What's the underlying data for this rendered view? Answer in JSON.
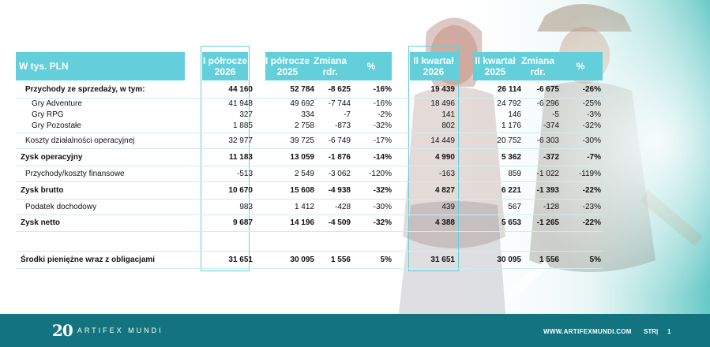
{
  "header": {
    "label": "W tys. PLN",
    "h1_2026": "I półrocze 2026",
    "h1_2025": "I półrocze 2025",
    "h1_change": "Zmiana rdr.",
    "h1_pct": "%",
    "q2_2026": "II kwartał 2026",
    "q2_2025": "II kwartał 2025",
    "q2_change": "Zmiana rdr.",
    "q2_pct": "%"
  },
  "rows": [
    {
      "label": "Przychody ze sprzedaży, w tym:",
      "h26": "44 160",
      "h25": "52 784",
      "hch": "-8 625",
      "hp": "-16%",
      "q26": "19 439",
      "q25": "26 114",
      "qch": "-6 675",
      "qp": "-26%"
    },
    {
      "label": "Gry Adventure",
      "h26": "41 948",
      "h25": "49 692",
      "hch": "-7 744",
      "hp": "-16%",
      "q26": "18 496",
      "q25": "24 792",
      "qch": "-6 296",
      "qp": "-25%"
    },
    {
      "label": "Gry RPG",
      "h26": "327",
      "h25": "334",
      "hch": "-7",
      "hp": "-2%",
      "q26": "141",
      "q25": "146",
      "qch": "-5",
      "qp": "-3%"
    },
    {
      "label": "Gry Pozostałe",
      "h26": "1 885",
      "h25": "2 758",
      "hch": "-873",
      "hp": "-32%",
      "q26": "802",
      "q25": "1 176",
      "qch": "-374",
      "qp": "-32%"
    },
    {
      "label": "Koszty działalności operacyjnej",
      "h26": "32 977",
      "h25": "39 725",
      "hch": "-6 749",
      "hp": "-17%",
      "q26": "14 449",
      "q25": "20 752",
      "qch": "-6 303",
      "qp": "-30%"
    },
    {
      "label": "Zysk operacyjny",
      "h26": "11 183",
      "h25": "13 059",
      "hch": "-1 876",
      "hp": "-14%",
      "q26": "4 990",
      "q25": "5 362",
      "qch": "-372",
      "qp": "-7%"
    },
    {
      "label": "Przychody/koszty finansowe",
      "h26": "-513",
      "h25": "2 549",
      "hch": "-3 062",
      "hp": "-120%",
      "q26": "-163",
      "q25": "859",
      "qch": "-1 022",
      "qp": "-119%"
    },
    {
      "label": "Zysk brutto",
      "h26": "10 670",
      "h25": "15 608",
      "hch": "-4 938",
      "hp": "-32%",
      "q26": "4 827",
      "q25": "6 221",
      "qch": "-1 393",
      "qp": "-22%"
    },
    {
      "label": "Podatek dochodowy",
      "h26": "983",
      "h25": "1 412",
      "hch": "-428",
      "hp": "-30%",
      "q26": "439",
      "q25": "567",
      "qch": "-128",
      "qp": "-23%"
    },
    {
      "label": "Zysk netto",
      "h26": "9 687",
      "h25": "14 196",
      "hch": "-4 509",
      "hp": "-32%",
      "q26": "4 388",
      "q25": "5 653",
      "qch": "-1 265",
      "qp": "-22%"
    },
    {
      "label": "Środki pieniężne wraz z obligacjami",
      "h26": "31 651",
      "h25": "30 095",
      "hch": "1 556",
      "hp": "5%",
      "q26": "31 651",
      "q25": "30 095",
      "qch": "1 556",
      "qp": "5%"
    }
  ],
  "footer": {
    "logo_number": "20",
    "logo_text": "ARTIFEX MUNDI",
    "url": "WWW.ARTIFEXMUNDI.COM",
    "str_label": "STR|",
    "page": "1"
  }
}
